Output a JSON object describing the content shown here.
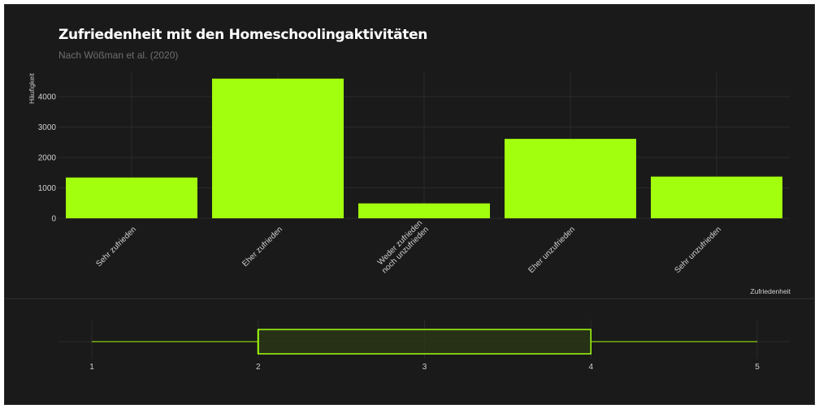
{
  "colors": {
    "background": "#1a1a1a",
    "bar": "#a2ff0d",
    "grid": "#2b2b2b",
    "text": "#d0d0d0",
    "box_fill": "#2c3a16"
  },
  "chart_data": [
    {
      "type": "bar",
      "title": "Zufriedenheit mit den Homeschoolingaktivitäten",
      "subtitle": "Nach Wößman et al. (2020)",
      "xlabel": "Zufriedenheit",
      "ylabel": "Häufigkeit",
      "categories": [
        "Sehr zufrieden",
        "Eher zufrieden",
        "Weder zufrieden\nnoch unzufrieden",
        "Eher unzufrieden",
        "Sehr unzufrieden"
      ],
      "values": [
        1340,
        4590,
        490,
        2610,
        1370
      ],
      "yticks": [
        0,
        1000,
        2000,
        3000,
        4000
      ],
      "ylim": [
        0,
        4600
      ]
    },
    {
      "type": "boxplot",
      "min": 1,
      "q1": 2,
      "median": 2,
      "q3": 4,
      "max": 5,
      "xticks": [
        1,
        2,
        3,
        4,
        5
      ],
      "xlim": [
        1,
        5
      ]
    }
  ]
}
